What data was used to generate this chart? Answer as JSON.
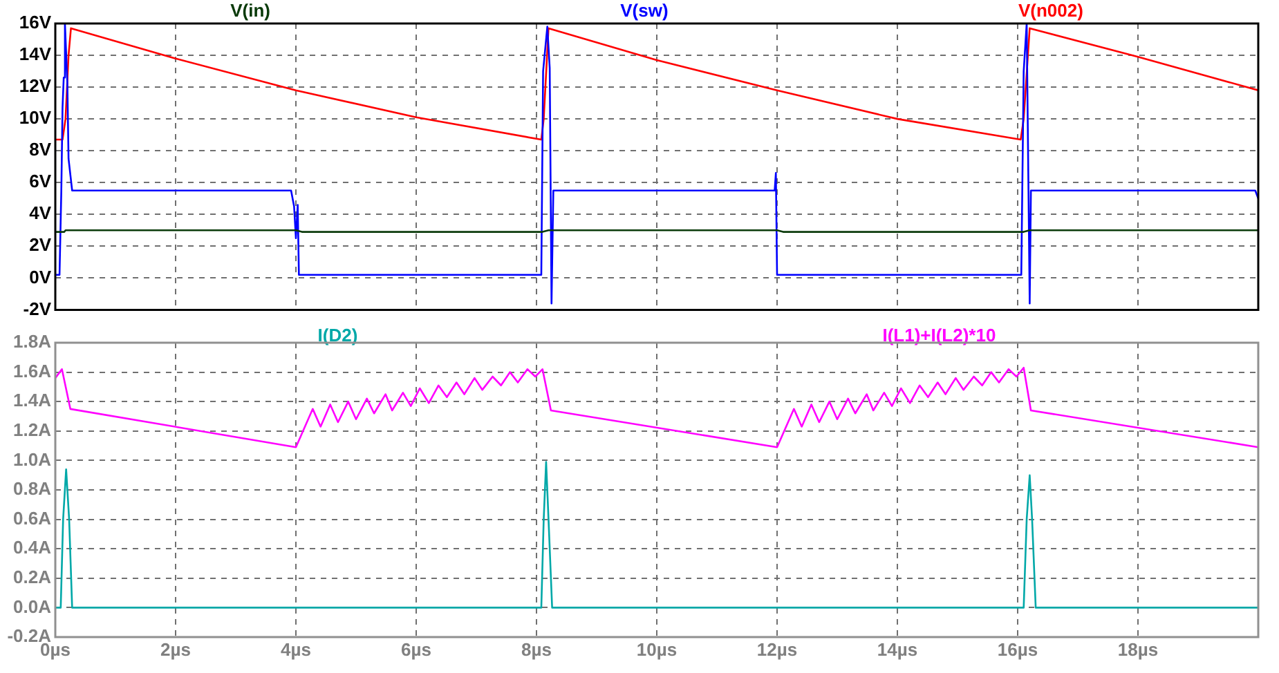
{
  "chart_data": [
    {
      "type": "line",
      "legend": "top",
      "grid": true,
      "marker": "none",
      "line_style": "solid",
      "tick_labels": "y",
      "xlim": [
        0,
        20
      ],
      "xticks": [
        {
          "value": 0,
          "label": null
        },
        {
          "value": 2,
          "label": null
        },
        {
          "value": 4,
          "label": null
        },
        {
          "value": 6,
          "label": null
        },
        {
          "value": 8,
          "label": null
        },
        {
          "value": 10,
          "label": null
        },
        {
          "value": 12,
          "label": null
        },
        {
          "value": 14,
          "label": null
        },
        {
          "value": 16,
          "label": null
        },
        {
          "value": 18,
          "label": null
        }
      ],
      "ylim": [
        -2,
        16
      ],
      "yticks": [
        {
          "value": -2,
          "label": "-2V"
        },
        {
          "value": 0,
          "label": "0V"
        },
        {
          "value": 2,
          "label": "2V"
        },
        {
          "value": 4,
          "label": "4V"
        },
        {
          "value": 6,
          "label": "6V"
        },
        {
          "value": 8,
          "label": "8V"
        },
        {
          "value": 10,
          "label": "10V"
        },
        {
          "value": 12,
          "label": "12V"
        },
        {
          "value": 14,
          "label": "14V"
        },
        {
          "value": 16,
          "label": "16V"
        }
      ],
      "series": [
        {
          "name": "V(in)",
          "color": "#0a3a0a",
          "x": [
            0,
            0.15,
            0.17,
            4.0,
            4.1,
            8.1,
            8.2,
            12.0,
            12.1,
            16.1,
            16.2,
            20
          ],
          "values": [
            2.9,
            2.9,
            3.0,
            3.0,
            2.9,
            2.9,
            3.0,
            3.0,
            2.9,
            2.9,
            3.0,
            3.0
          ]
        },
        {
          "name": "V(sw)",
          "color": "#0000ff",
          "x": [
            0,
            0.07,
            0.1,
            0.12,
            0.14,
            0.16,
            0.2,
            0.22,
            0.28,
            3.92,
            3.97,
            4.0,
            4.03,
            4.05,
            8.08,
            8.11,
            8.18,
            8.22,
            8.25,
            8.28,
            11.96,
            11.98,
            12.0,
            16.06,
            16.1,
            16.15,
            16.2,
            16.22,
            19.95,
            20
          ],
          "values": [
            0.2,
            0.2,
            5.5,
            10.7,
            12.6,
            16,
            12.3,
            7.5,
            5.5,
            5.5,
            4.5,
            2.5,
            4.6,
            0.2,
            0.2,
            13,
            15.8,
            13.2,
            -1.6,
            5.5,
            5.5,
            6.6,
            0.2,
            0.2,
            13,
            16,
            -1.6,
            5.5,
            5.5,
            5.0
          ]
        },
        {
          "name": "V(n002)",
          "color": "#ff0000",
          "x": [
            0,
            0.12,
            0.17,
            0.22,
            0.26,
            2,
            4,
            6,
            8.08,
            8.12,
            8.2,
            10,
            12,
            14,
            16.05,
            16.1,
            16.2,
            18,
            20
          ],
          "values": [
            8.7,
            8.7,
            10,
            14,
            15.7,
            13.8,
            11.8,
            10.1,
            8.7,
            10,
            15.7,
            13.7,
            11.8,
            10.0,
            8.7,
            10,
            15.7,
            13.9,
            11.8
          ]
        }
      ]
    },
    {
      "type": "line",
      "legend": "top",
      "grid": true,
      "marker": "none",
      "line_style": "solid",
      "xlim": [
        0,
        20
      ],
      "xticks": [
        {
          "value": 0,
          "label": "0µs"
        },
        {
          "value": 2,
          "label": "2µs"
        },
        {
          "value": 4,
          "label": "4µs"
        },
        {
          "value": 6,
          "label": "6µs"
        },
        {
          "value": 8,
          "label": "8µs"
        },
        {
          "value": 10,
          "label": "10µs"
        },
        {
          "value": 12,
          "label": "12µs"
        },
        {
          "value": 14,
          "label": "14µs"
        },
        {
          "value": 16,
          "label": "16µs"
        },
        {
          "value": 18,
          "label": "18µs"
        }
      ],
      "ylim": [
        -0.2,
        1.8
      ],
      "yticks": [
        {
          "value": -0.2,
          "label": "-0.2A"
        },
        {
          "value": 0,
          "label": "0.0A"
        },
        {
          "value": 0.2,
          "label": "0.2A"
        },
        {
          "value": 0.4,
          "label": "0.4A"
        },
        {
          "value": 0.6,
          "label": "0.6A"
        },
        {
          "value": 0.8,
          "label": "0.8A"
        },
        {
          "value": 1.0,
          "label": "1.0A"
        },
        {
          "value": 1.2,
          "label": "1.2A"
        },
        {
          "value": 1.4,
          "label": "1.4A"
        },
        {
          "value": 1.6,
          "label": "1.6A"
        },
        {
          "value": 1.8,
          "label": "1.8A"
        }
      ],
      "series": [
        {
          "name": "I(D2)",
          "color": "#00a8a8",
          "x": [
            0,
            0.09,
            0.13,
            0.18,
            0.23,
            0.28,
            8.08,
            8.12,
            8.16,
            8.2,
            8.26,
            16.1,
            16.15,
            16.2,
            16.24,
            16.3,
            20
          ],
          "values": [
            0,
            0,
            0.6,
            0.94,
            0.6,
            0,
            0,
            0.6,
            0.99,
            0.6,
            0,
            0,
            0.6,
            0.9,
            0.6,
            0,
            0
          ]
        },
        {
          "name": "I(L1)+I(L2)*10",
          "color": "#ff00ff",
          "x": [
            0,
            0.11,
            0.25,
            4.0,
            4.28,
            4.41,
            4.57,
            4.7,
            4.87,
            5.0,
            5.18,
            5.3,
            5.49,
            5.6,
            5.78,
            5.91,
            6.06,
            6.21,
            6.37,
            6.51,
            6.67,
            6.8,
            6.97,
            7.1,
            7.27,
            7.41,
            7.56,
            7.69,
            7.85,
            7.98,
            8.1,
            8.24,
            12.0,
            12.28,
            12.41,
            12.57,
            12.7,
            12.87,
            13.0,
            13.18,
            13.3,
            13.49,
            13.6,
            13.78,
            13.91,
            14.06,
            14.21,
            14.37,
            14.51,
            14.67,
            14.8,
            14.97,
            15.1,
            15.27,
            15.41,
            15.56,
            15.69,
            15.85,
            15.98,
            16.1,
            16.22,
            20
          ],
          "values": [
            1.56,
            1.62,
            1.35,
            1.09,
            1.35,
            1.23,
            1.38,
            1.26,
            1.4,
            1.28,
            1.42,
            1.32,
            1.45,
            1.34,
            1.46,
            1.37,
            1.49,
            1.39,
            1.51,
            1.43,
            1.53,
            1.45,
            1.56,
            1.48,
            1.57,
            1.51,
            1.6,
            1.53,
            1.62,
            1.57,
            1.62,
            1.34,
            1.09,
            1.35,
            1.23,
            1.38,
            1.26,
            1.4,
            1.28,
            1.42,
            1.32,
            1.45,
            1.34,
            1.46,
            1.37,
            1.49,
            1.39,
            1.51,
            1.43,
            1.53,
            1.45,
            1.56,
            1.48,
            1.57,
            1.51,
            1.6,
            1.53,
            1.62,
            1.57,
            1.63,
            1.34,
            1.09
          ]
        }
      ]
    }
  ]
}
